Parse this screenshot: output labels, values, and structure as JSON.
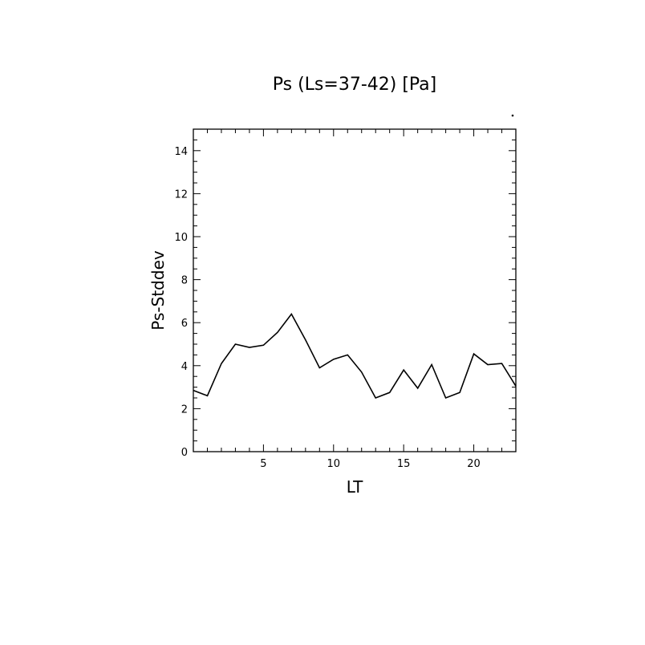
{
  "chart_data": {
    "type": "line",
    "title": "Ps (Ls=37-42) [Pa]",
    "xlabel": "LT",
    "ylabel": "Ps-Stddev",
    "xlim": [
      0,
      23
    ],
    "ylim": [
      0,
      15
    ],
    "x_ticks": [
      5,
      10,
      15,
      20
    ],
    "y_ticks": [
      0,
      2,
      4,
      6,
      8,
      10,
      12,
      14
    ],
    "grid": false,
    "series": [
      {
        "color": "#000000",
        "x": [
          0,
          1,
          2,
          3,
          4,
          5,
          6,
          7,
          8,
          9,
          10,
          11,
          12,
          13,
          14,
          15,
          16,
          17,
          18,
          19,
          20,
          21,
          22,
          23
        ],
        "y": [
          2.85,
          2.6,
          4.1,
          5.0,
          4.85,
          4.95,
          5.55,
          6.4,
          5.2,
          3.9,
          4.3,
          4.5,
          3.7,
          2.5,
          2.75,
          3.8,
          2.95,
          4.05,
          2.5,
          2.75,
          4.55,
          4.05,
          4.1,
          3.05
        ]
      }
    ]
  }
}
